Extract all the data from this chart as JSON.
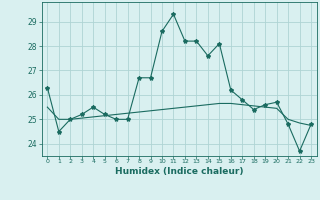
{
  "xlabel": "Humidex (Indice chaleur)",
  "background_color": "#d9f0f0",
  "grid_color": "#aed4d4",
  "line_color": "#1a6b60",
  "xlim": [
    -0.5,
    23.5
  ],
  "ylim": [
    23.5,
    29.8
  ],
  "yticks": [
    24,
    25,
    26,
    27,
    28,
    29
  ],
  "xticks": [
    0,
    1,
    2,
    3,
    4,
    5,
    6,
    7,
    8,
    9,
    10,
    11,
    12,
    13,
    14,
    15,
    16,
    17,
    18,
    19,
    20,
    21,
    22,
    23
  ],
  "line1_x": [
    0,
    1,
    2,
    3,
    4,
    5,
    6,
    7,
    8,
    9,
    10,
    11,
    12,
    13,
    14,
    15,
    16,
    17,
    18,
    19,
    20,
    21,
    22,
    23
  ],
  "line1_y": [
    26.3,
    24.5,
    25.0,
    25.2,
    25.5,
    25.2,
    25.0,
    25.0,
    26.7,
    26.7,
    28.6,
    29.3,
    28.2,
    28.2,
    27.6,
    28.1,
    26.2,
    25.8,
    25.4,
    25.6,
    25.7,
    24.8,
    23.7,
    24.8
  ],
  "line2_x": [
    0,
    1,
    2,
    3,
    4,
    5,
    6,
    7,
    8,
    9,
    10,
    11,
    12,
    13,
    14,
    15,
    16,
    17,
    18,
    19,
    20,
    21,
    22,
    23
  ],
  "line2_y": [
    25.5,
    25.0,
    25.0,
    25.05,
    25.1,
    25.15,
    25.2,
    25.25,
    25.3,
    25.35,
    25.4,
    25.45,
    25.5,
    25.55,
    25.6,
    25.65,
    25.65,
    25.6,
    25.55,
    25.5,
    25.45,
    25.0,
    24.85,
    24.75
  ]
}
